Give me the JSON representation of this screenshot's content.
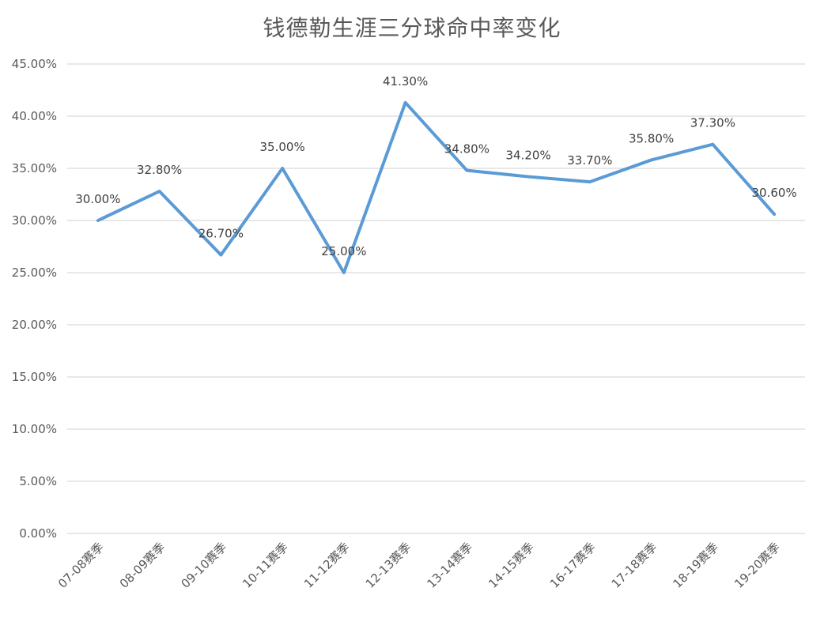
{
  "chart_data": {
    "type": "line",
    "title": "钱德勒生涯三分球命中率变化",
    "categories": [
      "07-08赛季",
      "08-09赛季",
      "09-10赛季",
      "10-11赛季",
      "11-12赛季",
      "12-13赛季",
      "13-14赛季",
      "14-15赛季",
      "16-17赛季",
      "17-18赛季",
      "18-19赛季",
      "19-20赛季"
    ],
    "values": [
      30.0,
      32.8,
      26.7,
      35.0,
      25.0,
      41.3,
      34.8,
      34.2,
      33.7,
      35.8,
      37.3,
      30.6
    ],
    "data_labels": [
      "30.00%",
      "32.80%",
      "26.70%",
      "35.00%",
      "25.00%",
      "41.30%",
      "34.80%",
      "34.20%",
      "33.70%",
      "35.80%",
      "37.30%",
      "30.60%"
    ],
    "y_ticks": [
      "0.00%",
      "5.00%",
      "10.00%",
      "15.00%",
      "20.00%",
      "25.00%",
      "30.00%",
      "35.00%",
      "40.00%",
      "45.00%"
    ],
    "ylim": [
      0,
      45
    ],
    "y_step": 5,
    "xlabel": "",
    "ylabel": "",
    "grid": true,
    "legend": "none",
    "colors": {
      "line": "#5b9bd5",
      "grid": "#d9d9d9",
      "text": "#595959"
    }
  }
}
